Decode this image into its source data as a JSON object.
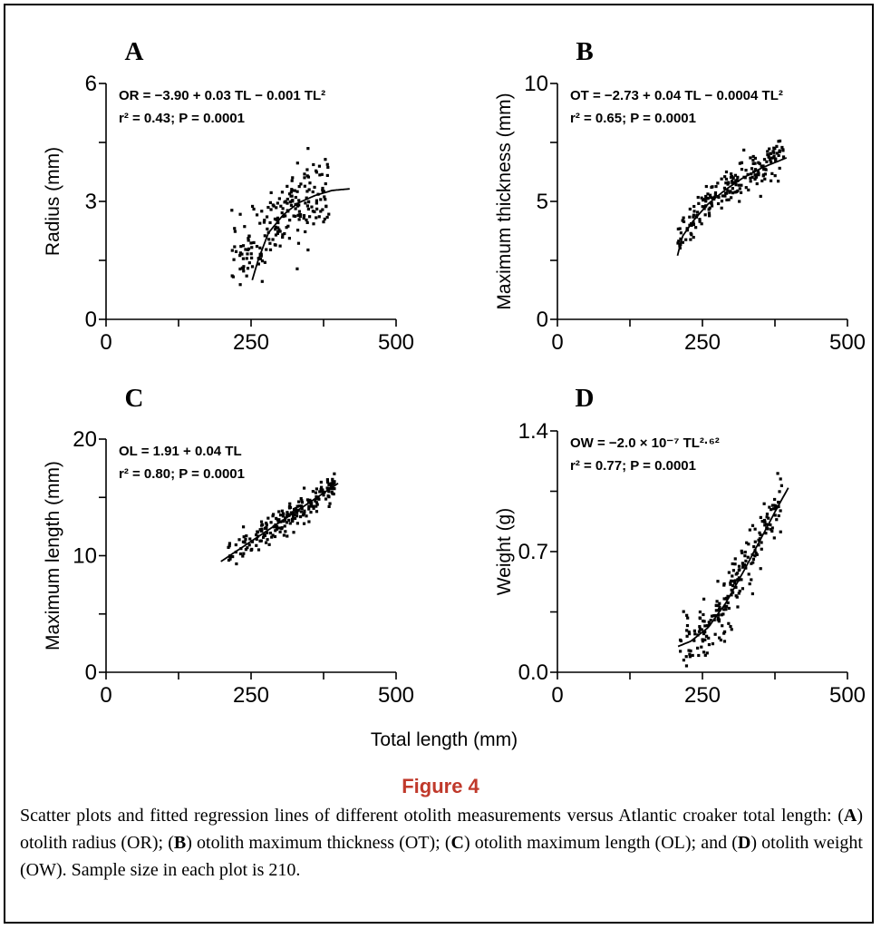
{
  "figure": {
    "shared_xlabel": "Total length (mm)",
    "title": "Figure 4",
    "caption": [
      {
        "t": "Scatter plots and fitted regression lines of different otolith measurements versus Atlantic croaker total length: ("
      },
      {
        "t": "A",
        "b": true
      },
      {
        "t": ") otolith radius (OR); ("
      },
      {
        "t": "B",
        "b": true
      },
      {
        "t": ") otolith maximum thickness (OT); ("
      },
      {
        "t": "C",
        "b": true
      },
      {
        "t": ") otolith maximum length (OL); and ("
      },
      {
        "t": "D",
        "b": true
      },
      {
        "t": ") otolith weight (OW). Sample size in each plot is 210."
      }
    ]
  },
  "chart_data": [
    {
      "type": "scatter",
      "panel": "A",
      "ylabel": "Radius (mm)",
      "xlim": [
        0,
        500
      ],
      "ylim": [
        0,
        6
      ],
      "xticks": [
        0,
        250,
        500
      ],
      "xticklabels": [
        "0",
        "250",
        "500"
      ],
      "yticks": [
        0,
        3,
        6
      ],
      "yticklabels": [
        "0",
        "3",
        "6"
      ],
      "equation": [
        "OR = −3.90 + 0.03 TL − 0.001 TL²",
        "r² = 0.43; P = 0.0001"
      ],
      "n": 210,
      "x_range": [
        215,
        385
      ],
      "model": {
        "kind": "fit_points",
        "x": [
          252,
          262,
          280,
          305,
          330,
          360,
          390,
          420
        ],
        "y": [
          1.0,
          1.5,
          2.2,
          2.65,
          2.95,
          3.15,
          3.28,
          3.32
        ]
      },
      "scatter_sd": 0.55,
      "seed": 11,
      "fit_x": [
        252,
        420
      ]
    },
    {
      "type": "scatter",
      "panel": "B",
      "ylabel": "Maximum thickness (mm)",
      "xlim": [
        0,
        500
      ],
      "ylim": [
        0,
        10
      ],
      "xticks": [
        0,
        250,
        500
      ],
      "xticklabels": [
        "0",
        "250",
        "500"
      ],
      "yticks": [
        0,
        5,
        10
      ],
      "yticklabels": [
        "0",
        "5",
        "10"
      ],
      "equation": [
        "OT = −2.73 + 0.04 TL − 0.0004 TL²",
        "r² = 0.65; P = 0.0001"
      ],
      "n": 210,
      "x_range": [
        205,
        390
      ],
      "model": {
        "kind": "fit_points",
        "x": [
          207,
          215,
          235,
          260,
          290,
          320,
          355,
          395
        ],
        "y": [
          2.7,
          3.5,
          4.2,
          4.9,
          5.5,
          6.0,
          6.45,
          6.85
        ]
      },
      "scatter_sd": 0.5,
      "seed": 23,
      "fit_x": [
        207,
        395
      ]
    },
    {
      "type": "scatter",
      "panel": "C",
      "ylabel": "Maximum length (mm)",
      "xlim": [
        0,
        500
      ],
      "ylim": [
        0,
        20
      ],
      "xticks": [
        0,
        250,
        500
      ],
      "xticklabels": [
        "0",
        "250",
        "500"
      ],
      "yticks": [
        0,
        10,
        20
      ],
      "yticklabels": [
        "0",
        "10",
        "20"
      ],
      "equation": [
        "OL = 1.91 + 0.04 TL",
        "r² = 0.80; P = 0.0001"
      ],
      "n": 210,
      "x_range": [
        210,
        395
      ],
      "model": {
        "kind": "fit_points",
        "x": [
          198,
          400
        ],
        "y": [
          9.5,
          16.2
        ]
      },
      "scatter_sd": 0.75,
      "seed": 37,
      "fit_x": [
        198,
        400
      ]
    },
    {
      "type": "scatter",
      "panel": "D",
      "ylabel": "Weight (g)",
      "xlim": [
        0,
        500
      ],
      "ylim": [
        0,
        1.4
      ],
      "xticks": [
        0,
        250,
        500
      ],
      "xticklabels": [
        "0",
        "250",
        "500"
      ],
      "yticks": [
        0,
        0.7,
        1.4
      ],
      "yticklabels": [
        "0.0",
        "0.7",
        "1.4"
      ],
      "equation": [
        "OW = −2.0 × 10⁻⁷ TL²·⁶²",
        "r² = 0.77; P = 0.0001"
      ],
      "n": 210,
      "x_range": [
        210,
        390
      ],
      "model": {
        "kind": "fit_points",
        "x": [
          208,
          230,
          260,
          290,
          320,
          350,
          375,
          398
        ],
        "y": [
          0.15,
          0.18,
          0.26,
          0.4,
          0.58,
          0.77,
          0.93,
          1.07
        ]
      },
      "scatter_sd": 0.1,
      "seed": 53,
      "fit_x": [
        208,
        398
      ]
    }
  ]
}
